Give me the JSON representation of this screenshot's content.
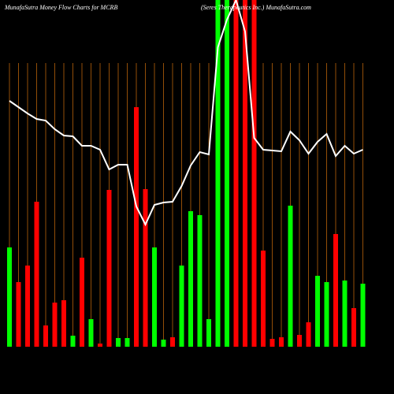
{
  "chart_data": {
    "type": "money-flow",
    "title": "MunafaSutra  Money Flow  Charts for MCRB",
    "subtitle": "(Seres Therapeutics Inc.) MunafaSutra.com",
    "ylim": [
      0,
      440
    ],
    "background": "#000000",
    "grid": true,
    "grid_color": "#b8620a",
    "bars": {
      "values": [
        126,
        82,
        103,
        184,
        27,
        56,
        59,
        14,
        113,
        35,
        4,
        199,
        11,
        11,
        304,
        200,
        126,
        9,
        12,
        103,
        172,
        167,
        35,
        440,
        440,
        440,
        440,
        440,
        122,
        10,
        12,
        179,
        15,
        31,
        90,
        82,
        143,
        84,
        49,
        80
      ],
      "colors": [
        "#00ff00",
        "#ff0000",
        "#ff0000",
        "#ff0000",
        "#ff0000",
        "#ff0000",
        "#ff0000",
        "#00ff00",
        "#ff0000",
        "#00ff00",
        "#ff0000",
        "#ff0000",
        "#00ff00",
        "#00ff00",
        "#ff0000",
        "#ff0000",
        "#00ff00",
        "#00ff00",
        "#ff0000",
        "#00ff00",
        "#00ff00",
        "#00ff00",
        "#00ff00",
        "#00ff00",
        "#00ff00",
        "#ff0000",
        "#ff0000",
        "#ff0000",
        "#ff0000",
        "#ff0000",
        "#ff0000",
        "#00ff00",
        "#ff0000",
        "#ff0000",
        "#00ff00",
        "#00ff00",
        "#ff0000",
        "#00ff00",
        "#ff0000",
        "#00ff00"
      ]
    },
    "line": {
      "color": "#ffffff",
      "values": [
        312,
        304,
        296,
        289,
        287,
        276,
        268,
        267,
        255,
        255,
        250,
        225,
        231,
        231,
        178,
        155,
        180,
        183,
        184,
        204,
        230,
        247,
        244,
        380,
        415,
        440,
        400,
        265,
        250,
        249,
        248,
        273,
        262,
        245,
        260,
        270,
        242,
        255,
        245,
        250
      ]
    }
  }
}
